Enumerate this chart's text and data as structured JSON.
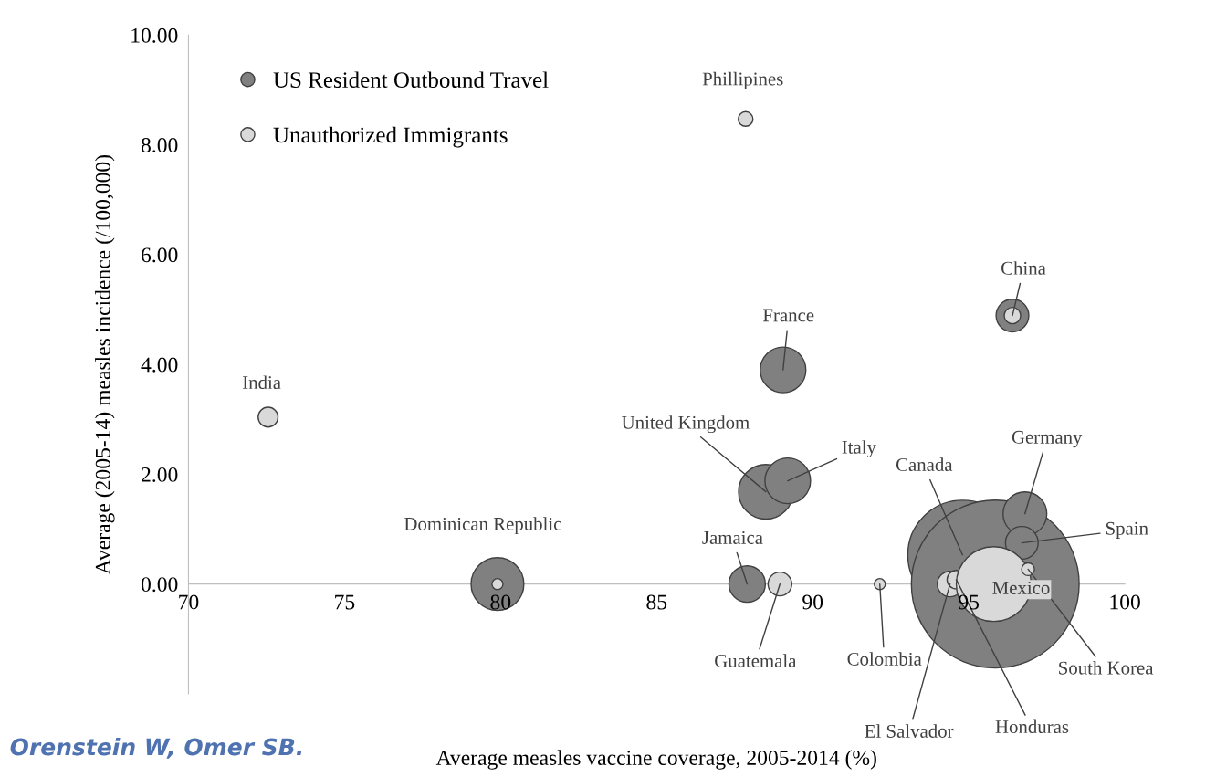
{
  "chart_data": {
    "type": "bubble",
    "xlabel": "Average measles vaccine coverage, 2005-2014 (%)",
    "ylabel": "Average (2005-14) measles incidence (/100,000)",
    "xlim": [
      70,
      100
    ],
    "xticks": [
      70,
      75,
      80,
      85,
      90,
      95,
      100
    ],
    "ylim": [
      -2,
      10
    ],
    "yticks": [
      {
        "value": 0,
        "label": "0.00"
      },
      {
        "value": 2,
        "label": "2.00"
      },
      {
        "value": 4,
        "label": "4.00"
      },
      {
        "value": 6,
        "label": "6.00"
      },
      {
        "value": 8,
        "label": "8.00"
      },
      {
        "value": 10,
        "label": "10.00"
      }
    ],
    "grid": false,
    "legend": "top left",
    "marker": "circle",
    "series": [
      {
        "name": "US Resident Outbound Travel",
        "color": "#808080",
        "x": [
          79.9,
          87.9,
          89.05,
          88.5,
          89.2,
          94.8,
          95.85,
          96.8,
          96.7,
          96.4
        ],
        "values": [
          0,
          0,
          3.9,
          1.68,
          1.88,
          0.53,
          0,
          1.28,
          0.75,
          4.89
        ],
        "sizes": [
          0.099,
          0.047,
          0.074,
          0.106,
          0.074,
          0.425,
          1,
          0.068,
          0.038,
          0.038
        ]
      },
      {
        "name": "Unauthorized Immigrants",
        "color": "#d9d9d9",
        "x": [
          87.85,
          72.55,
          79.9,
          88.95,
          92.15,
          94.4,
          94.6,
          95.8,
          96.9,
          96.4
        ],
        "values": [
          8.47,
          3.04,
          0,
          0,
          0,
          0,
          0.08,
          0,
          0.27,
          4.89
        ],
        "sizes": [
          0.0076,
          0.014,
          0.0043,
          0.02,
          0.0043,
          0.023,
          0.012,
          0.199,
          0.0058,
          0.0096
        ]
      }
    ],
    "annotations": [
      {
        "text": "Phillipines",
        "x": 87.85,
        "y": 8.47
      },
      {
        "text": "India",
        "x": 72.55,
        "y": 3.04
      },
      {
        "text": "Dominican Republic",
        "x": 79.9,
        "y": 0
      },
      {
        "text": "France",
        "x": 89.05,
        "y": 3.9
      },
      {
        "text": "United Kingdom",
        "x": 88.5,
        "y": 1.68
      },
      {
        "text": "Italy",
        "x": 89.2,
        "y": 1.88
      },
      {
        "text": "Jamaica",
        "x": 87.9,
        "y": 0
      },
      {
        "text": "Guatemala",
        "x": 88.95,
        "y": 0
      },
      {
        "text": "Colombia",
        "x": 92.15,
        "y": 0
      },
      {
        "text": "Canada",
        "x": 94.8,
        "y": 0.53
      },
      {
        "text": "Germany",
        "x": 96.8,
        "y": 1.28
      },
      {
        "text": "Spain",
        "x": 96.7,
        "y": 0.75
      },
      {
        "text": "China",
        "x": 96.4,
        "y": 4.89
      },
      {
        "text": "Mexico",
        "x": 95.8,
        "y": 0
      },
      {
        "text": "El Salvador",
        "x": 94.4,
        "y": 0
      },
      {
        "text": "Honduras",
        "x": 94.6,
        "y": 0.08
      },
      {
        "text": "South Korea",
        "x": 96.9,
        "y": 0.27
      },
      "Orenstein W, Omer SB."
    ]
  }
}
